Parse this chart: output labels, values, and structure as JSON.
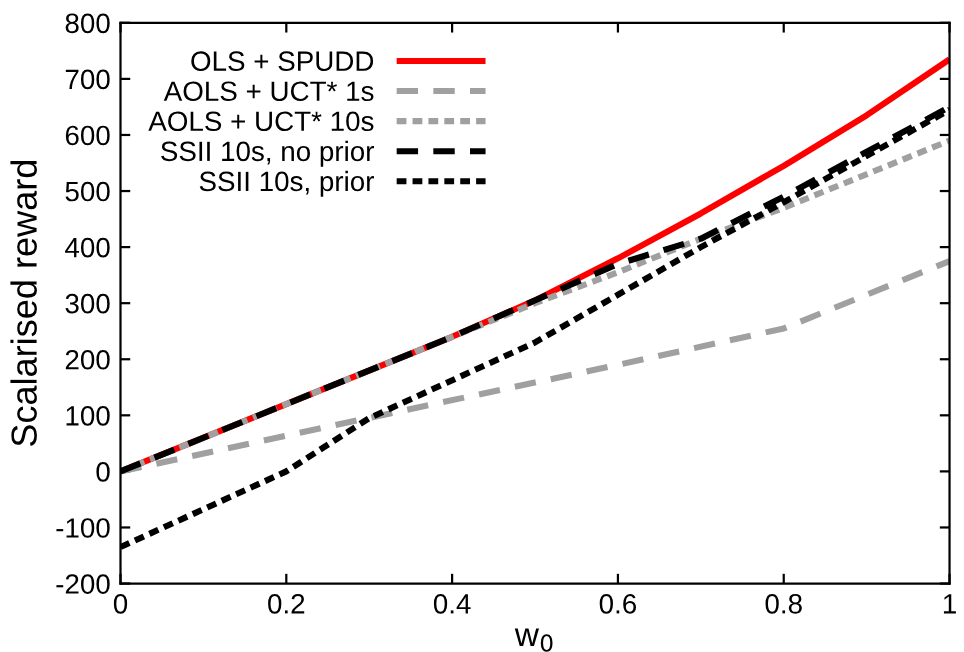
{
  "chart_data": {
    "type": "line",
    "xlabel": "w$_{0}$",
    "ylabel": "Scalarised reward",
    "xlim": [
      0,
      1
    ],
    "ylim": [
      -200,
      800
    ],
    "xticks": [
      0,
      {
        "value": 0.2,
        "label": "0.2"
      },
      {
        "value": 0.4,
        "label": "0.4"
      },
      {
        "value": 0.6,
        "label": "0.6"
      },
      {
        "value": 0.8,
        "label": "0.8"
      },
      1
    ],
    "yticks": [
      -200,
      -100,
      0,
      100,
      200,
      300,
      400,
      500,
      600,
      700,
      800
    ],
    "grid": false,
    "legend": "top left",
    "marker": "none",
    "series": [
      {
        "name": "OLS + SPUDD",
        "color": "#ff0000",
        "line_style": "solid",
        "x": [
          0,
          0.2,
          0.4,
          0.5,
          0.6,
          0.7,
          0.8,
          0.9,
          1
        ],
        "values": [
          0,
          120,
          240,
          305,
          380,
          460,
          545,
          635,
          735
        ]
      },
      {
        "name": "AOLS + UCT* 1s",
        "color": "#a0a0a0",
        "line_style": "dashed",
        "x": [
          0,
          0.33,
          0.6,
          0.8,
          1
        ],
        "values": [
          0,
          105,
          190,
          255,
          375
        ]
      },
      {
        "name": "AOLS + UCT* 10s",
        "color": "#a0a0a0",
        "line_style": "dotted",
        "x": [
          0,
          0.4,
          0.5,
          0.6,
          0.7,
          0.8,
          1
        ],
        "values": [
          0,
          240,
          300,
          355,
          415,
          470,
          590
        ]
      },
      {
        "name": "SSII 10s, no prior",
        "color": "#000000",
        "line_style": "dashed",
        "x": [
          0,
          0.4,
          0.6,
          0.7,
          0.8,
          1
        ],
        "values": [
          0,
          240,
          370,
          415,
          490,
          650
        ]
      },
      {
        "name": "SSII 10s, prior",
        "color": "#000000",
        "line_style": "dotted",
        "x": [
          0,
          0.2,
          0.3,
          0.5,
          0.6,
          0.7,
          0.8,
          1
        ],
        "values": [
          -135,
          0,
          95,
          230,
          315,
          400,
          480,
          645
        ]
      }
    ]
  }
}
